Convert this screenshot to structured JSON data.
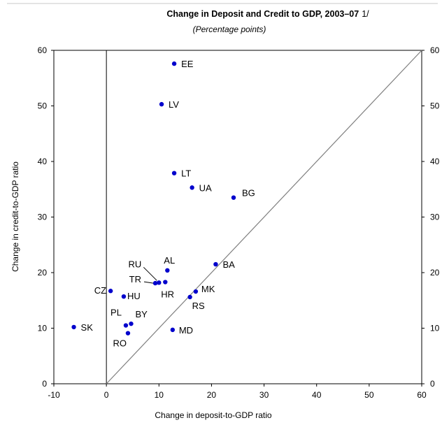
{
  "chart_data": {
    "type": "scatter",
    "title": "Change in Deposit and Credit to GDP, 2003–07",
    "title_footnote": "1/",
    "subtitle": "(Percentage points)",
    "xlabel": "Change in deposit-to-GDP ratio",
    "ylabel": "Change in credit-to-GDP ratio",
    "xlim": [
      -10,
      60
    ],
    "ylim": [
      0,
      60
    ],
    "x_ticks": [
      "-10",
      "0",
      "10",
      "20",
      "30",
      "40",
      "50",
      "60"
    ],
    "y_ticks": [
      "0",
      "10",
      "20",
      "30",
      "40",
      "50",
      "60"
    ],
    "y_ticks_right": [
      "0",
      "10",
      "20",
      "30",
      "40",
      "50",
      "60"
    ],
    "grid": false,
    "reference_line": "45-degree line",
    "marker_color": "#0000cc",
    "points": [
      {
        "label": "EE",
        "x": 12.9,
        "y": 57.6
      },
      {
        "label": "LV",
        "x": 10.5,
        "y": 50.3
      },
      {
        "label": "LT",
        "x": 12.9,
        "y": 37.9
      },
      {
        "label": "UA",
        "x": 16.3,
        "y": 35.3
      },
      {
        "label": "BG",
        "x": 24.2,
        "y": 33.5
      },
      {
        "label": "BA",
        "x": 20.8,
        "y": 21.5
      },
      {
        "label": "AL",
        "x": 11.6,
        "y": 20.4
      },
      {
        "label": "RU",
        "x": 10.0,
        "y": 18.2
      },
      {
        "label": "TR",
        "x": 9.3,
        "y": 18.1
      },
      {
        "label": "HR",
        "x": 11.2,
        "y": 18.3
      },
      {
        "label": "MK",
        "x": 17.0,
        "y": 16.6
      },
      {
        "label": "RS",
        "x": 15.9,
        "y": 15.6
      },
      {
        "label": "CZ",
        "x": 0.8,
        "y": 16.7
      },
      {
        "label": "HU",
        "x": 3.3,
        "y": 15.7
      },
      {
        "label": "SK",
        "x": -6.2,
        "y": 10.2
      },
      {
        "label": "PL",
        "x": 3.7,
        "y": 10.5
      },
      {
        "label": "BY",
        "x": 4.7,
        "y": 10.8
      },
      {
        "label": "RO",
        "x": 4.1,
        "y": 9.1
      },
      {
        "label": "MD",
        "x": 12.6,
        "y": 9.7
      }
    ]
  }
}
